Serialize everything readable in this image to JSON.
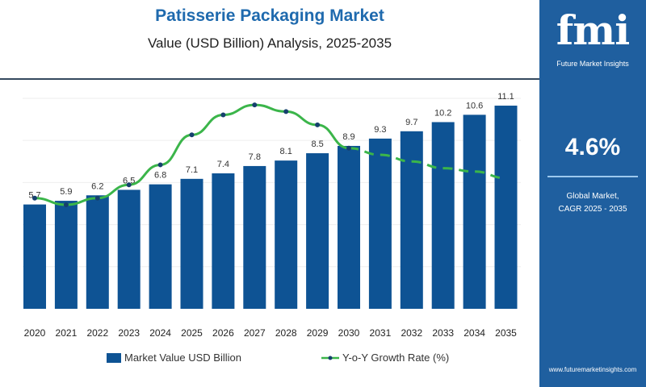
{
  "header": {
    "title": "Patisserie Packaging Market",
    "subtitle": "Value (USD Billion) Analysis, 2025-2035"
  },
  "panel": {
    "logo": "fmi",
    "logo_text": "Future Market Insights",
    "cagr_value": "4.6%",
    "cagr_label_1": "Global Market,",
    "cagr_label_2": "CAGR 2025 - 2035",
    "website": "www.futuremarketinsights.com"
  },
  "colors": {
    "bar": "#0e5394",
    "line": "#3bb54a",
    "marker": "#16406e",
    "panel": "#1f5f9f",
    "title": "#1f6aae"
  },
  "chart_data": {
    "type": "bar+line",
    "categories": [
      "2020",
      "2021",
      "2022",
      "2023",
      "2024",
      "2025",
      "2026",
      "2027",
      "2028",
      "2029",
      "2030",
      "2031",
      "2032",
      "2033",
      "2034",
      "2035"
    ],
    "series": [
      {
        "name": "Market Value USD Billion",
        "type": "bar",
        "values": [
          5.7,
          5.9,
          6.2,
          6.5,
          6.8,
          7.1,
          7.4,
          7.8,
          8.1,
          8.5,
          8.9,
          9.3,
          9.7,
          10.2,
          10.6,
          11.1
        ],
        "labels": [
          "5.7",
          "5.9",
          "6.2",
          "6.5",
          "6.8",
          "7.1",
          "7.4",
          "7.8",
          "8.1",
          "8.5",
          "8.9",
          "9.3",
          "9.7",
          "10.2",
          "10.6",
          "11.1"
        ]
      },
      {
        "name": "Y-o-Y Growth Rate (%)",
        "type": "line",
        "estimated": true,
        "values": [
          3.2,
          3.0,
          3.2,
          3.6,
          4.2,
          5.1,
          5.7,
          6.0,
          5.8,
          5.4,
          4.7,
          4.5,
          4.3,
          4.1,
          4.0,
          3.8
        ],
        "dashed_from": "2031"
      }
    ],
    "ylim": [
      0,
      11.5
    ],
    "grid": true,
    "legend": "bottom"
  }
}
